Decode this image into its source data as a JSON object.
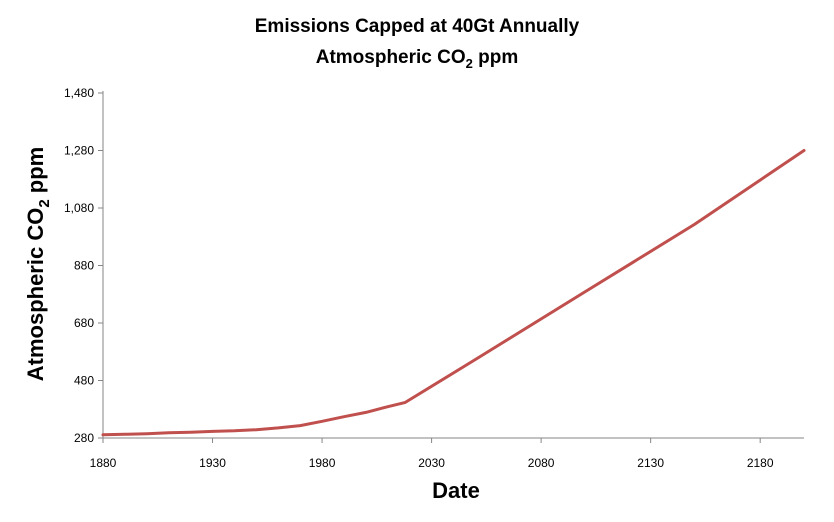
{
  "chart_data": {
    "type": "line",
    "title": "Emissions Capped at 40Gt Annually",
    "subtitle_prefix": "Atmospheric CO",
    "subtitle_sub": "2",
    "subtitle_suffix": " ppm",
    "xlabel": "Date",
    "ylabel_prefix": "Atmospheric CO",
    "ylabel_sub": "2",
    "ylabel_suffix": " ppm",
    "xlim": [
      1880,
      2200
    ],
    "ylim": [
      280,
      1480
    ],
    "x_ticks": [
      1880,
      1930,
      1980,
      2030,
      2080,
      2130,
      2180
    ],
    "y_ticks": [
      280,
      480,
      680,
      880,
      1080,
      1280,
      1480
    ],
    "y_tick_labels": [
      "280",
      "480",
      "680",
      "880",
      "1,080",
      "1,280",
      "1,480"
    ],
    "grid": false,
    "line_color": "#c0504d",
    "series": [
      {
        "x": [
          1880,
          1890,
          1900,
          1910,
          1920,
          1930,
          1940,
          1950,
          1960,
          1970,
          1980,
          1990,
          2000,
          2010,
          2018,
          2050,
          2100,
          2150,
          2200
        ],
        "values": [
          291,
          293,
          295,
          298,
          300,
          303,
          305,
          309,
          315,
          323,
          338,
          354,
          369,
          389,
          404,
          553,
          788,
          1023,
          1280
        ]
      }
    ]
  }
}
